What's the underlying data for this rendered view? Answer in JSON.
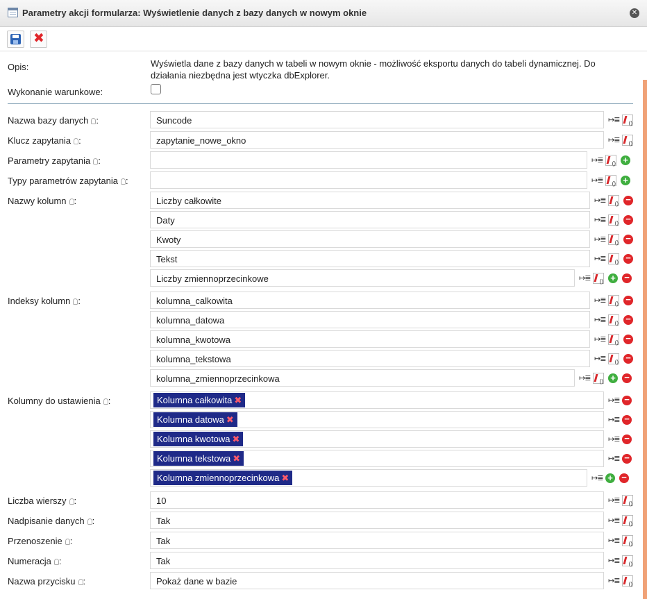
{
  "window": {
    "title": "Parametry akcji formularza: Wyświetlenie danych z bazy danych w nowym oknie",
    "title_icon": "table-icon",
    "close_glyph": "✕"
  },
  "toolbar": {
    "save_icon": "save-icon",
    "cancel_icon": "cancel-icon",
    "cancel_glyph": "✖"
  },
  "colors": {
    "tag_bg": "#1f2a88",
    "add": "#3fae3f",
    "remove": "#e0262a",
    "accent": "#f0a277"
  },
  "icons": {
    "list": "↦≣",
    "add": "+",
    "remove": "−",
    "tag_remove": "✖"
  },
  "form": {
    "description_label": "Opis:",
    "description": "Wyświetla dane z bazy danych w tabeli w nowym oknie - możliwość eksportu danych do tabeli dynamicznej. Do działania niezbędna jest wtyczka dbExplorer.",
    "conditional_label": "Wykonanie warunkowe:",
    "conditional_checked": false,
    "fields": [
      {
        "label": "Nazwa bazy danych",
        "values": [
          "Suncode"
        ]
      },
      {
        "label": "Klucz zapytania",
        "values": [
          "zapytanie_nowe_okno"
        ]
      },
      {
        "label": "Parametry zapytania",
        "values": [
          ""
        ]
      },
      {
        "label": "Typy parametrów zapytania",
        "values": [
          ""
        ]
      },
      {
        "label": "Nazwy kolumn",
        "values": [
          "Liczby całkowite",
          "Daty",
          "Kwoty",
          "Tekst",
          "Liczby zmiennoprzecinkowe"
        ]
      },
      {
        "label": "Indeksy kolumn",
        "values": [
          "kolumna_calkowita",
          "kolumna_datowa",
          "kolumna_kwotowa",
          "kolumna_tekstowa",
          "kolumna_zmiennoprzecinkowa"
        ]
      },
      {
        "label": "Kolumny do ustawienia",
        "values": [
          "Kolumna całkowita",
          "Kolumna datowa",
          "Kolumna kwotowa",
          "Kolumna tekstowa",
          "Kolumna zmiennoprzecinkowa"
        ]
      },
      {
        "label": "Liczba wierszy",
        "values": [
          "10"
        ]
      },
      {
        "label": "Nadpisanie danych",
        "values": [
          "Tak"
        ]
      },
      {
        "label": "Przenoszenie",
        "values": [
          "Tak"
        ]
      },
      {
        "label": "Numeracja",
        "values": [
          "Tak"
        ]
      },
      {
        "label": "Nazwa przycisku",
        "values": [
          "Pokaż dane w bazie"
        ]
      }
    ]
  }
}
